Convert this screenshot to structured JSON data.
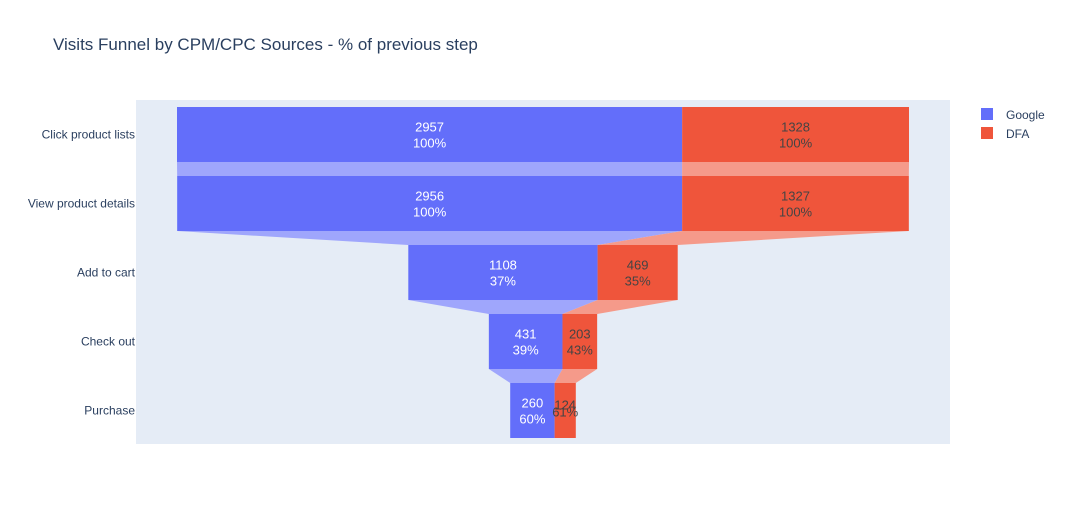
{
  "chart_data": {
    "type": "funnel",
    "title": "Visits Funnel by CPM/CPC Sources - % of previous step",
    "categories": [
      "Click product lists",
      "View product details",
      "Add to cart",
      "Check out",
      "Purchase"
    ],
    "series": [
      {
        "name": "Google",
        "color": "#636efa",
        "connector_color": "#9fa6fc",
        "label_color": "#ffffff",
        "values": [
          2957,
          2956,
          1108,
          431,
          260
        ],
        "percent_labels": [
          "100%",
          "100%",
          "37%",
          "39%",
          "60%"
        ]
      },
      {
        "name": "DFA",
        "color": "#ef553b",
        "connector_color": "#f59a8a",
        "label_color": "#444444",
        "values": [
          1328,
          1327,
          469,
          203,
          124
        ],
        "percent_labels": [
          "100%",
          "100%",
          "35%",
          "43%",
          "61%"
        ]
      }
    ],
    "legend": {
      "position": "top-right",
      "entries": [
        "Google",
        "DFA"
      ]
    },
    "plot_background": "#e5ecf6"
  }
}
